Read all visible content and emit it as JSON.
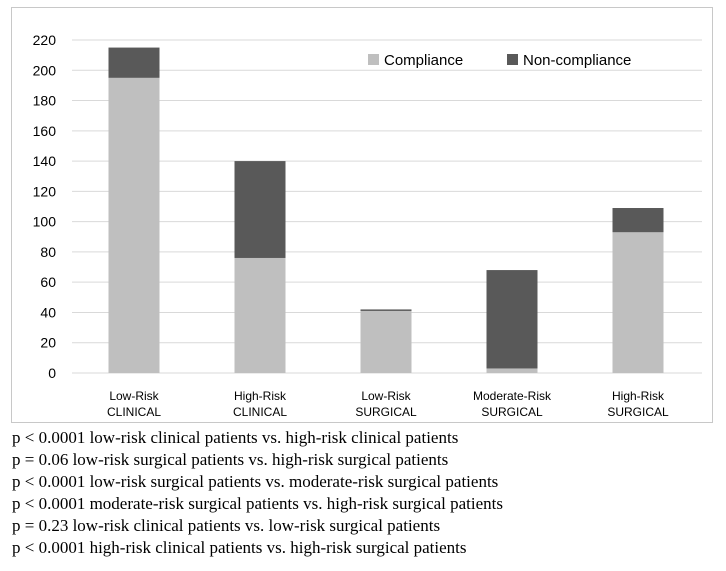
{
  "chart_data": {
    "type": "bar",
    "stacked": true,
    "categories": [
      [
        "Low-Risk",
        "CLINICAL"
      ],
      [
        "High-Risk",
        "CLINICAL"
      ],
      [
        "Low-Risk",
        "SURGICAL"
      ],
      [
        "Moderate-Risk",
        "SURGICAL"
      ],
      [
        "High-Risk",
        "SURGICAL"
      ]
    ],
    "series": [
      {
        "name": "Compliance",
        "color": "#bfbfbf",
        "values": [
          195,
          76,
          41,
          3,
          93
        ]
      },
      {
        "name": "Non-compliance",
        "color": "#595959",
        "values": [
          20,
          64,
          1,
          65,
          16
        ]
      }
    ],
    "ylim": [
      0,
      220
    ],
    "yticks": [
      0,
      20,
      40,
      60,
      80,
      100,
      120,
      140,
      160,
      180,
      200,
      220
    ],
    "grid": true,
    "legend_position": "top-right",
    "title": "",
    "xlabel": "",
    "ylabel": ""
  },
  "footnotes": [
    "p < 0.0001 low-risk clinical patients vs. high-risk clinical patients",
    "p = 0.06 low-risk surgical patients vs. high-risk surgical patients",
    "p < 0.0001 low-risk surgical patients vs. moderate-risk surgical patients",
    "p < 0.0001 moderate-risk surgical patients vs. high-risk surgical patients",
    "p = 0.23 low-risk clinical patients vs. low-risk surgical patients",
    "p < 0.0001 high-risk clinical patients vs. high-risk surgical patients"
  ]
}
